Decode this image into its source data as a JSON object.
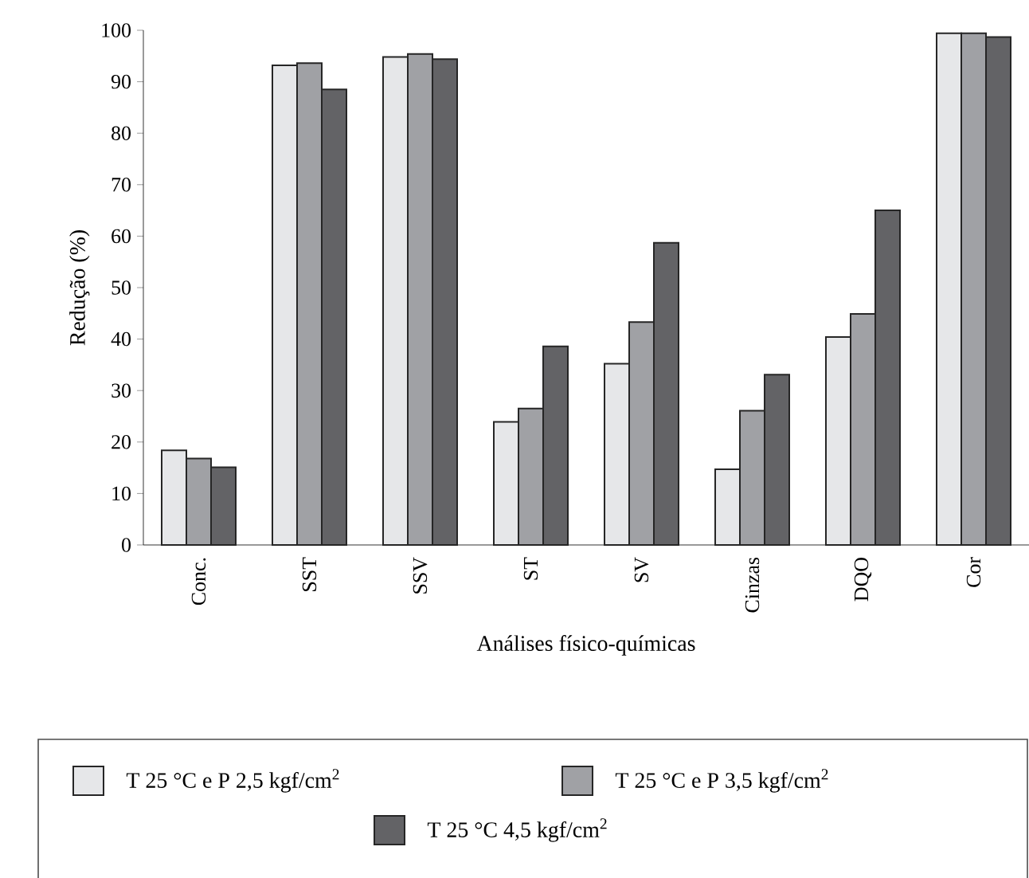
{
  "chart_data": {
    "type": "bar",
    "xlabel": "Análises físico-químicas",
    "ylabel": "Redução (%)",
    "categories": [
      "Conc.",
      "SST",
      "SSV",
      "ST",
      "SV",
      "Cinzas",
      "DQO",
      "Cor"
    ],
    "series": [
      {
        "name": "T 25 °C e P 2,5 kgf/cm$^{2}$",
        "color": "#e6e7e9",
        "values": [
          18.4,
          93.2,
          94.8,
          23.9,
          35.2,
          14.7,
          40.4,
          99.4
        ]
      },
      {
        "name": "T 25 °C e P 3,5 kgf/cm$^{2}$",
        "color": "#a0a1a5",
        "values": [
          16.8,
          93.6,
          95.4,
          26.5,
          43.3,
          26.1,
          44.9,
          99.4
        ]
      },
      {
        "name": "T 25 °C 4,5 kgf/cm$^{2}$",
        "color": "#636366",
        "values": [
          15.1,
          88.5,
          94.4,
          38.6,
          58.7,
          33.1,
          65.0,
          98.7
        ]
      }
    ],
    "ylim": [
      0,
      100
    ],
    "yticks": [
      0,
      10,
      20,
      30,
      40,
      50,
      60,
      70,
      80,
      90,
      100
    ],
    "legend": "bottom"
  }
}
